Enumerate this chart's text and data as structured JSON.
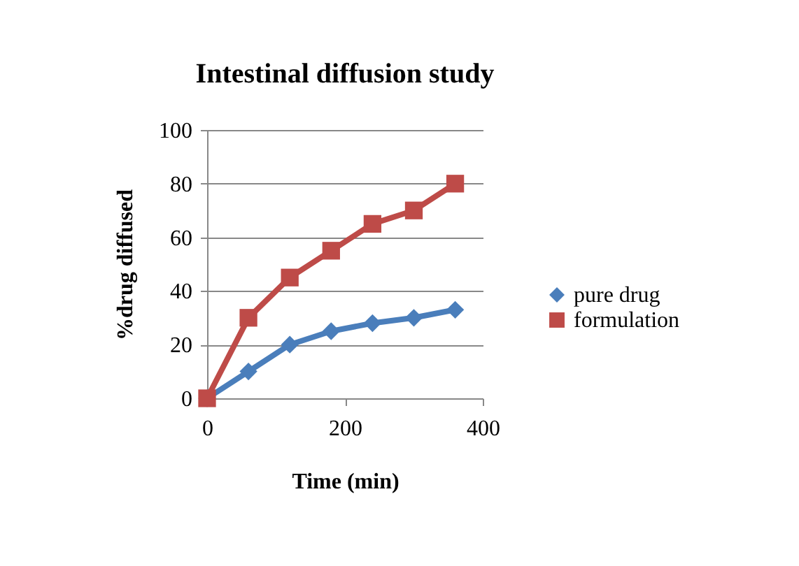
{
  "chart_data": {
    "type": "line",
    "title": "Intestinal diffusion study",
    "xlabel": "Time (min)",
    "ylabel": "%drug diffused",
    "x": [
      0,
      60,
      120,
      180,
      240,
      300,
      360
    ],
    "series": [
      {
        "name": "pure drug",
        "color": "#4a7ebb",
        "marker": "diamond",
        "values": [
          0,
          10,
          20,
          25,
          28,
          30,
          33
        ]
      },
      {
        "name": "formulation",
        "color": "#be4b48",
        "marker": "square",
        "values": [
          0,
          30,
          45,
          55,
          65,
          70,
          80
        ]
      }
    ],
    "xlim": [
      0,
      400
    ],
    "xticks": [
      0,
      200,
      400
    ],
    "ylim": [
      0,
      100
    ],
    "yticks": [
      0,
      20,
      40,
      60,
      80,
      100
    ],
    "grid": "y",
    "legend": "right"
  }
}
